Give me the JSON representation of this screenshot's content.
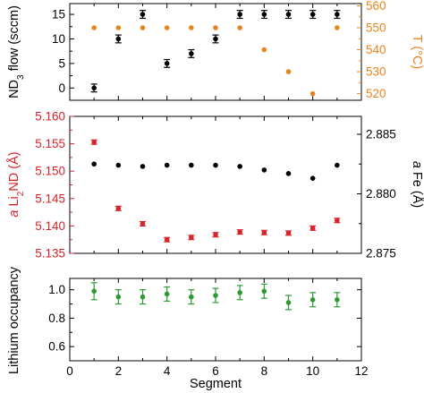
{
  "chart_data": [
    {
      "type": "scatter",
      "panel": "top",
      "xlim": [
        0,
        12
      ],
      "y_left_ticks": [
        "0",
        "5",
        "10",
        "15"
      ],
      "ylim_left": [
        -2.5,
        17.2
      ],
      "y_right_ticks": [
        "520",
        "530",
        "540",
        "550",
        "560"
      ],
      "ylim_right": [
        517,
        561
      ],
      "series": [
        {
          "name": "ND3 flow (sccm)",
          "axis": "left",
          "color": "#000000",
          "x": [
            1,
            2,
            3,
            4,
            5,
            6,
            7,
            8,
            9,
            10,
            11
          ],
          "y": [
            0,
            10,
            15,
            5,
            7,
            10,
            15,
            15,
            15,
            15,
            15
          ],
          "yerr": [
            0.8,
            0.8,
            0.8,
            0.8,
            0.8,
            0.8,
            0.8,
            0.8,
            0.8,
            0.8,
            0.8
          ]
        },
        {
          "name": "T (°C)",
          "axis": "right",
          "color": "#E8841E",
          "x": [
            1,
            2,
            3,
            4,
            5,
            6,
            7,
            8,
            9,
            10,
            11
          ],
          "y": [
            550,
            550,
            550,
            550,
            550,
            550,
            550,
            540,
            530,
            520,
            550
          ]
        }
      ]
    },
    {
      "type": "scatter",
      "panel": "middle",
      "xlim": [
        0,
        12
      ],
      "y_left_ticks": [
        "5.135",
        "5.140",
        "5.145",
        "5.150",
        "5.155",
        "5.160"
      ],
      "ylim_left": [
        5.135,
        5.16
      ],
      "y_right_ticks": [
        "2.875",
        "2.880",
        "2.885"
      ],
      "ylim_right": [
        2.875,
        2.8865
      ],
      "series": [
        {
          "name": "a Li2ND (Å)",
          "axis": "left",
          "color": "#D8232A",
          "x": [
            1,
            2,
            3,
            4,
            5,
            6,
            7,
            8,
            9,
            10,
            11
          ],
          "y": [
            5.1553,
            5.1432,
            5.1404,
            5.1375,
            5.1379,
            5.1384,
            5.1389,
            5.1388,
            5.1387,
            5.1396,
            5.141
          ],
          "yerr": [
            0.0004,
            0.0004,
            0.0004,
            0.0004,
            0.0004,
            0.0004,
            0.0004,
            0.0004,
            0.0004,
            0.0004,
            0.0004
          ]
        },
        {
          "name": "a Fe (Å)",
          "axis": "right",
          "color": "#000000",
          "x": [
            1,
            2,
            3,
            4,
            5,
            6,
            7,
            8,
            9,
            10,
            11
          ],
          "y": [
            2.8825,
            2.8824,
            2.8823,
            2.8824,
            2.8824,
            2.8824,
            2.8823,
            2.882,
            2.8817,
            2.8813,
            2.8824
          ]
        }
      ]
    },
    {
      "type": "scatter",
      "panel": "bottom",
      "xlim": [
        0,
        12
      ],
      "x_ticks": [
        "0",
        "2",
        "4",
        "6",
        "8",
        "10",
        "12"
      ],
      "xlabel": "Segment",
      "y_left_ticks": [
        "0.6",
        "0.8",
        "1.0"
      ],
      "ylim_left": [
        0.5,
        1.08
      ],
      "series": [
        {
          "name": "Lithium occupancy",
          "axis": "left",
          "color": "#2E9A34",
          "x": [
            1,
            2,
            3,
            4,
            5,
            6,
            7,
            8,
            9,
            10,
            11
          ],
          "y": [
            0.99,
            0.95,
            0.95,
            0.97,
            0.95,
            0.96,
            0.98,
            0.99,
            0.91,
            0.93,
            0.93
          ],
          "yerr": [
            0.06,
            0.05,
            0.05,
            0.05,
            0.05,
            0.05,
            0.05,
            0.05,
            0.05,
            0.05,
            0.05
          ]
        }
      ]
    }
  ],
  "labels": {
    "top_left": "ND3 flow (sccm)",
    "top_right": "T (°C)",
    "mid_left": "a Li2ND (Å)",
    "mid_right": "a Fe (Å)",
    "bottom_left": "Lithium occupancy",
    "xlabel": "Segment"
  }
}
